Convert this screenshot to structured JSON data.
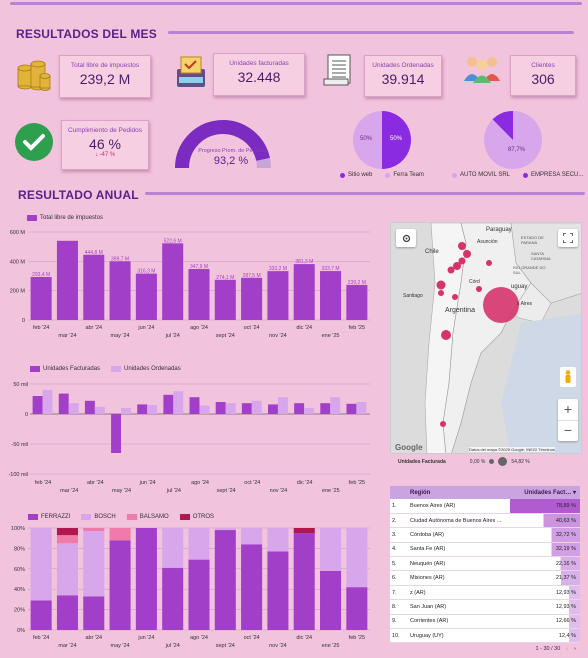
{
  "sections": {
    "month": "RESULTADOS DEL MES",
    "annual": "RESULTADO ANUAL"
  },
  "kpis": [
    {
      "label": "Total libre de impuestos",
      "value": "239,2 M"
    },
    {
      "label": "Unidades facturadas",
      "value": "32.448"
    },
    {
      "label": "Unidades Ordenadas",
      "value": "39.914"
    },
    {
      "label": "Clientes",
      "value": "306"
    },
    {
      "label": "Cumplimiento de Pedidos",
      "value": "46 %",
      "delta": "↓ -47 %"
    }
  ],
  "gauge": {
    "label": "Progreso Prom. de Pedidos",
    "value": "93,2 %",
    "fraction": 0.932
  },
  "pie1": {
    "left": "50%",
    "right": "50%",
    "legend": [
      "Sitio web",
      "Ferra Team"
    ],
    "colors": [
      "#8a2be2",
      "#d8a6ea"
    ]
  },
  "pie2": {
    "left": "",
    "right": "87,7%",
    "legend": [
      "AUTO MOVIL SRL",
      "EMPRESA SECU..."
    ],
    "colors": [
      "#d8a6ea",
      "#8a2be2"
    ]
  },
  "chart1": {
    "type": "bar",
    "legend": "Total libre de impuestos",
    "color": "#a23fc8",
    "yticks": [
      "0",
      "200 M",
      "400 M",
      "600 M"
    ],
    "ymax": 600,
    "xtop": [
      "feb '24",
      "abr '24",
      "jun '24",
      "ago '24",
      "oct '24",
      "dic '24",
      "feb '25"
    ],
    "xbot": [
      "mar '24",
      "may '24",
      "jul '24",
      "sept '24",
      "nov '24",
      "ene '25"
    ],
    "values": [
      293.4,
      540,
      444.8,
      399.7,
      316.3,
      522.6,
      347.9,
      274.1,
      287.5,
      333.2,
      381.3,
      333.7,
      239.2
    ],
    "labels": [
      "293,4 M",
      "",
      "444,8 M",
      "399,7 M",
      "316,3 M",
      "522,6 M",
      "347,9 M",
      "274,1 M",
      "287,5 M",
      "333,2 M",
      "381,3 M",
      "333,7 M",
      "239,2 M"
    ]
  },
  "chart2": {
    "type": "bar",
    "series": [
      {
        "name": "Unidades Facturadas",
        "color": "#a23fc8",
        "values": [
          30,
          34,
          22,
          -65,
          16,
          32,
          28,
          20,
          18,
          16,
          18,
          18,
          17
        ]
      },
      {
        "name": "Unidades Ordenadas",
        "color": "#d8a6ea",
        "values": [
          40,
          18,
          12,
          10,
          15,
          38,
          14,
          18,
          22,
          28,
          10,
          28,
          20
        ]
      }
    ],
    "yticks": [
      "-100 mil",
      "-50 mil",
      "0",
      "50 mil"
    ],
    "xtop": [
      "feb '24",
      "abr '24",
      "jun '24",
      "ago '24",
      "oct '24",
      "dic '24",
      "feb '25"
    ],
    "xbot": [
      "mar '24",
      "may '24",
      "jul '24",
      "sept '24",
      "nov '24",
      "ene '25"
    ]
  },
  "chart3": {
    "type": "bar",
    "legend": [
      {
        "name": "FERRAZZI",
        "color": "#a23fc8"
      },
      {
        "name": "BOSCH",
        "color": "#d8a6ea"
      },
      {
        "name": "BALSAMO",
        "color": "#f07aaa"
      },
      {
        "name": "OTROS",
        "color": "#b0174f"
      }
    ],
    "yticks": [
      "0%",
      "20%",
      "40%",
      "60%",
      "80%",
      "100%"
    ],
    "stacks": [
      [
        29,
        71,
        0,
        0
      ],
      [
        34,
        51,
        8,
        7
      ],
      [
        33,
        64,
        3,
        0
      ],
      [
        88,
        0,
        12,
        0
      ],
      [
        100,
        0,
        0,
        0
      ],
      [
        61,
        39,
        0,
        0
      ],
      [
        69,
        31,
        0,
        0
      ],
      [
        98,
        2,
        0,
        0
      ],
      [
        84,
        16,
        0,
        0
      ],
      [
        77,
        23,
        0,
        0
      ],
      [
        95,
        0,
        0,
        5
      ],
      [
        58,
        42,
        0,
        0
      ],
      [
        42,
        58,
        0,
        0
      ]
    ],
    "xtop": [
      "feb '24",
      "abr '24",
      "jun '24",
      "ago '24",
      "oct '24",
      "dic '24",
      "feb '25"
    ],
    "xbot": [
      "mar '24",
      "may '24",
      "jul '24",
      "sept '24",
      "nov '24",
      "ene '25"
    ]
  },
  "map": {
    "labels": [
      "Paraguay",
      "Asunción",
      "Chile",
      "Santiago",
      "Argentina",
      "ESTADO DE PARANÁ",
      "SANTA CATARINA",
      "RIO GRANDE DO SUL",
      "Córd",
      "uguay",
      "s Aires"
    ],
    "attribution": "Datos del mapa ©2025 Google, INEGI   Términos",
    "google": "Google",
    "footer_label": "Unidades Facturada",
    "footer_min": "0,00 %",
    "footer_max": "54,82 %"
  },
  "table": {
    "headers": [
      "Región",
      "Unidades Fact… ▾"
    ],
    "rows": [
      [
        "1.",
        "Buenos Aires (AR)",
        "78,89 %",
        1.0
      ],
      [
        "2.",
        "Ciudad Autónoma de Buenos Aires ...",
        "40,63 %",
        0.52
      ],
      [
        "3.",
        "Córdoba (AR)",
        "32,72 %",
        0.41
      ],
      [
        "4.",
        "Santa Fe (AR)",
        "32,19 %",
        0.41
      ],
      [
        "5.",
        "Neuquén (AR)",
        "22,16 %",
        0.28
      ],
      [
        "6.",
        "Misiones (AR)",
        "21,37 %",
        0.27
      ],
      [
        "7.",
        "z (AR)",
        "12,93 %",
        0.16
      ],
      [
        "8.",
        "San Juan (AR)",
        "12,93 %",
        0.16
      ],
      [
        "9.",
        "Corrientes (AR)",
        "12,66 %",
        0.16
      ],
      [
        "10.",
        "Uruguay (UY)",
        "12,4 %",
        0.16
      ]
    ],
    "pagination": "1 - 30 / 30"
  }
}
